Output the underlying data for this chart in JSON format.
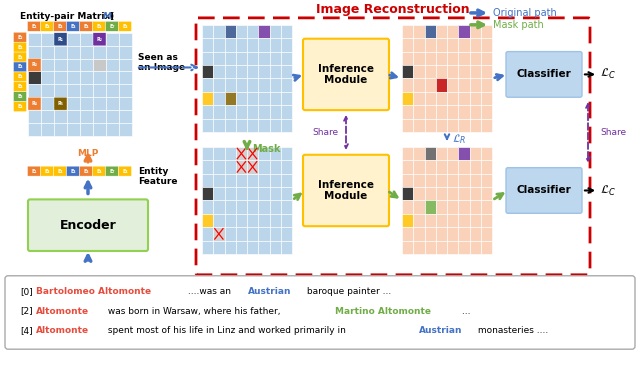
{
  "bg_color": "#ffffff",
  "title": "Image Reconstruction",
  "title_color": "#cc0000",
  "legend_original_color": "#4472c4",
  "legend_mask_color": "#70ad47",
  "encoder_fill": "#e2efda",
  "encoder_edge": "#92d050",
  "inference_fill": "#fff2cc",
  "inference_edge": "#ffc000",
  "classifier_fill": "#bdd7ee",
  "classifier_edge": "#9dc3e6",
  "red_border": "#cc0000",
  "blue_arrow": "#4472c4",
  "green_arrow": "#70ad47",
  "orange_arrow": "#ed7d31",
  "purple_share": "#7030a0",
  "matrix_blue": "#b0cfe8",
  "matrix_orange": "#f8cbad",
  "cell_black": "#1a1a1a",
  "cell_darkblue": "#2e4d8a",
  "cell_purple": "#7030a0",
  "cell_gold": "#ffc000",
  "cell_olive": "#806000",
  "cell_red": "#c00000",
  "cell_darkgray": "#595959",
  "cell_green": "#70ad47",
  "cell_gray": "#808080",
  "cell_lightgray": "#bfbfbf",
  "cell_orange": "#ed7d31",
  "entity_colors_top": [
    "#ed7d31",
    "#ffc000",
    "#ed7d31",
    "#4472c4",
    "#ed7d31",
    "#ffc000",
    "#70ad47",
    "#ffc000"
  ],
  "entity_labels_top": [
    "E₁",
    "E₄",
    "E₄",
    "E₄",
    "E₄",
    "E₄",
    "E₇",
    "E₄"
  ],
  "entity_colors_left": [
    "#ed7d31",
    "#ffc000",
    "#ffc000",
    "#4472c4",
    "#ffc000",
    "#ffc000",
    "#70ad47",
    "#ffc000"
  ],
  "entity_labels_left": [
    "E₂",
    "E₄",
    "E₄",
    "E₄",
    "E₄",
    "E₄",
    "E₈",
    "E₄"
  ],
  "entity_feat_colors": [
    "#ed7d31",
    "#ffc000",
    "#ffc000",
    "#4472c4",
    "#ed7d31",
    "#ffc000",
    "#70ad47",
    "#ffc000"
  ],
  "entity_feat_labels": [
    "E₁",
    "E₄",
    "E₄",
    "E₄",
    "E₄",
    "E₄",
    "E₇",
    "E₄"
  ]
}
